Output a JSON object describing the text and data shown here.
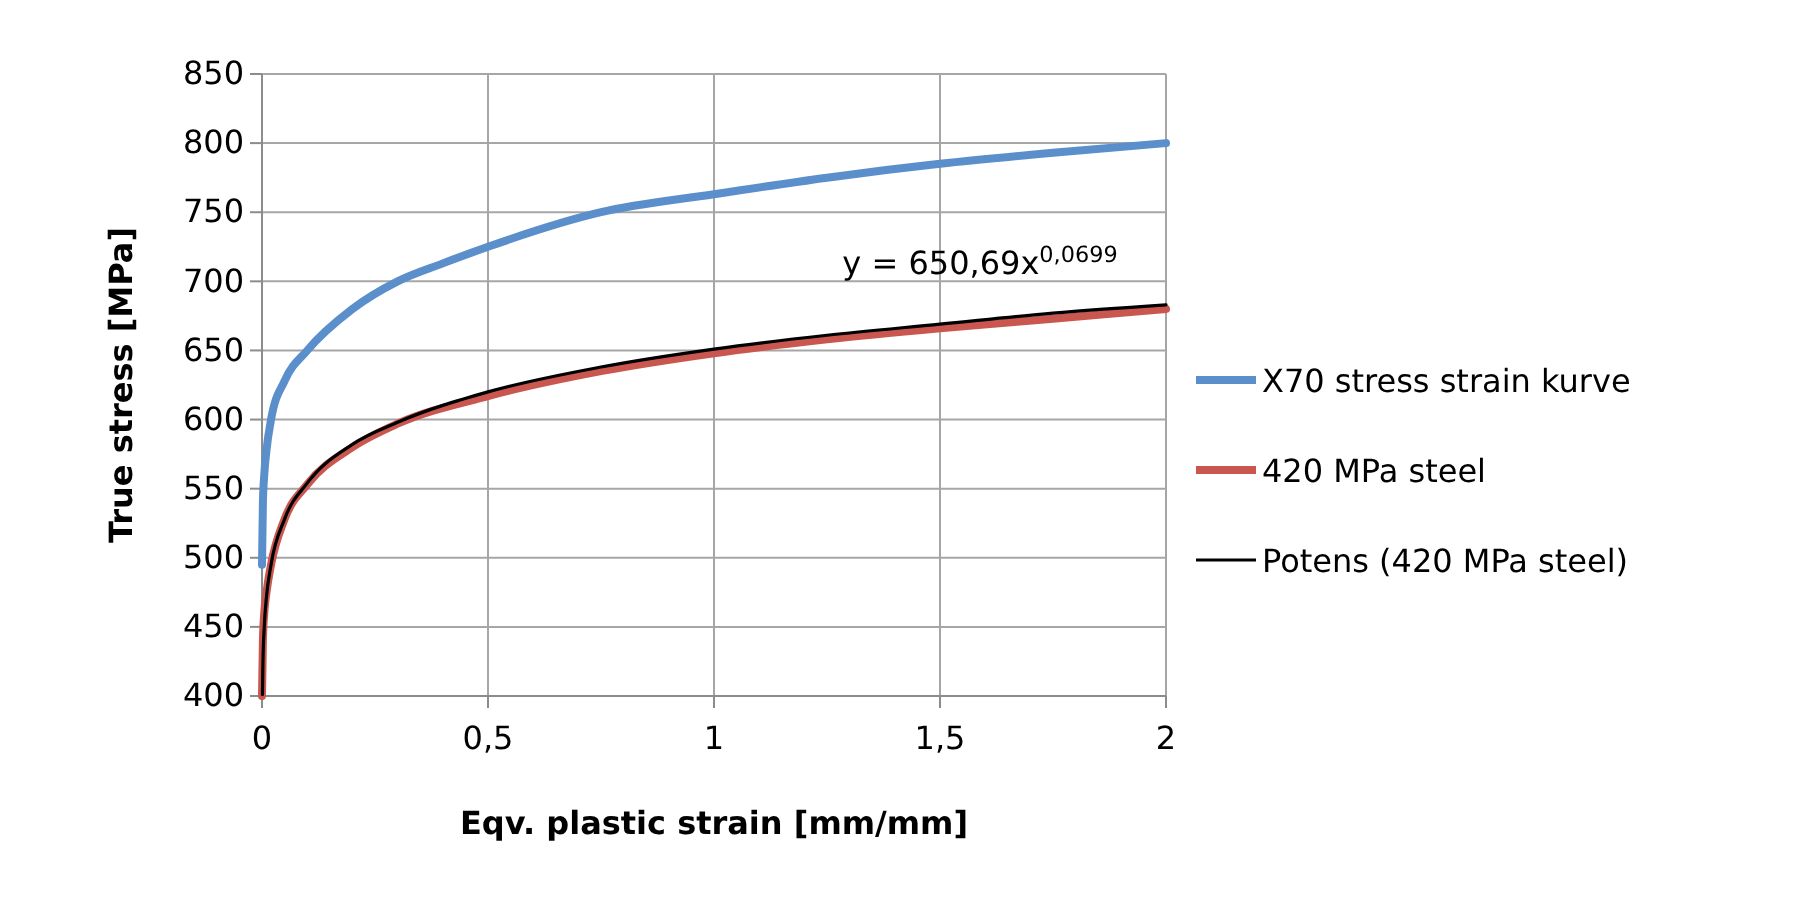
{
  "chart_data": {
    "type": "line",
    "xlabel": "Eqv. plastic strain [mm/mm]",
    "ylabel": "True stress [MPa]",
    "xlim": [
      0,
      2
    ],
    "xticks": [
      0,
      {
        "value": 0.5,
        "label": "0,5"
      },
      1,
      {
        "value": 1.5,
        "label": "1,5"
      },
      2
    ],
    "ylim": [
      400,
      850
    ],
    "yticks": [
      400,
      450,
      500,
      550,
      600,
      650,
      700,
      750,
      800,
      850
    ],
    "grid": true,
    "legend": "right",
    "marker": "none",
    "series": [
      {
        "name": "X70 stress strain kurve",
        "color": "#5b8fcb",
        "x": [
          0,
          0.002,
          0.005,
          0.01,
          0.02,
          0.05,
          0.1,
          0.2,
          0.3,
          0.4,
          0.5,
          0.75,
          1,
          1.25,
          1.5,
          1.75,
          2
        ],
        "values": [
          495,
          540,
          560,
          578,
          600,
          628,
          650,
          680,
          700,
          713,
          725,
          750,
          763,
          775,
          785,
          793,
          800
        ]
      },
      {
        "name": "420 MPa steel",
        "color": "#c9574f",
        "x": [
          0,
          0.002,
          0.005,
          0.01,
          0.02,
          0.05,
          0.1,
          0.2,
          0.3,
          0.5,
          0.75,
          1,
          1.25,
          1.5,
          1.75,
          2
        ],
        "values": [
          400,
          440,
          460,
          475,
          495,
          528,
          553,
          580,
          597,
          617,
          635,
          648,
          658,
          666,
          673,
          680
        ]
      },
      {
        "name": "Potens (420 MPa steel)",
        "color": "#000000",
        "x": [
          0.001,
          0.002,
          0.005,
          0.01,
          0.02,
          0.05,
          0.1,
          0.2,
          0.3,
          0.5,
          0.75,
          1,
          1.25,
          1.5,
          1.75,
          2
        ],
        "values": [
          401,
          423,
          450,
          472,
          495,
          528,
          554,
          582,
          598,
          620,
          638,
          651,
          661,
          669,
          677,
          683
        ]
      }
    ],
    "annotations": [
      "y = 650,69x$^{0,0699}$"
    ]
  }
}
